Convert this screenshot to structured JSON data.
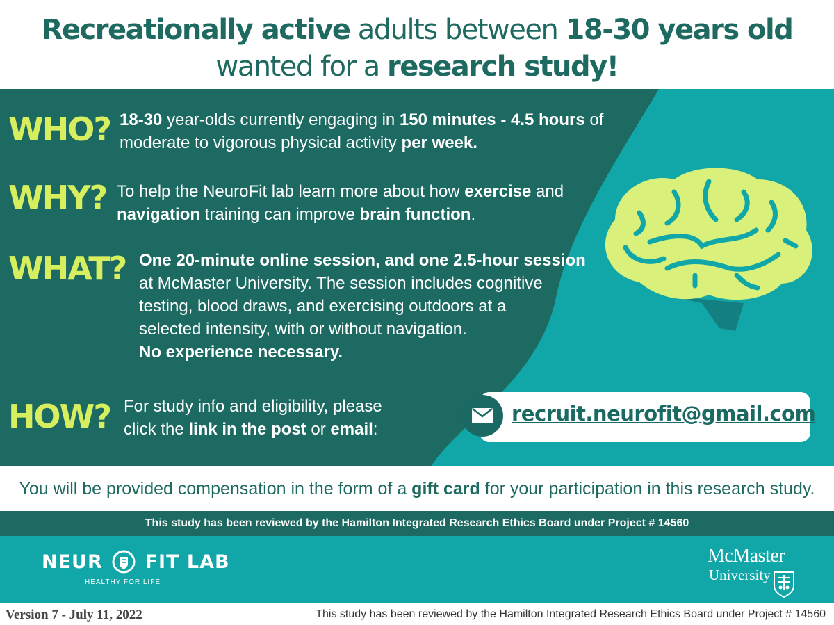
{
  "header": {
    "line1_a": "Recreationally active",
    "line1_b": " adults between ",
    "line1_c": "18-30 years old",
    "line2_a": "wanted for  a ",
    "line2_b": "research study!"
  },
  "who": {
    "label": "WHO?",
    "t1": "18-30",
    "t2": " year-olds currently engaging in ",
    "t3": "150 minutes - 4.5 hours",
    "t4": " of",
    "t5": "moderate to vigorous physical activity ",
    "t6": "per week."
  },
  "why": {
    "label": "WHY?",
    "t1": "To help the NeuroFit lab learn more about how ",
    "t2": "exercise",
    "t3": " and",
    "t4": "navigation",
    "t5": " training can improve ",
    "t6": "brain function",
    "t7": "."
  },
  "what": {
    "label": "WHAT?",
    "l1": "One 20-minute online session, and one 2.5-hour session",
    "l2": "at McMaster University. The session includes cognitive",
    "l3": "testing, blood draws, and exercising outdoors at a",
    "l4": "selected intensity, with or without navigation.",
    "l5": "No experience necessary."
  },
  "how": {
    "label": "HOW?",
    "l1": "For study info and eligibility, please",
    "t1": "click the ",
    "t2": "link in the post",
    "t3": " or ",
    "t4": "email",
    "t5": ":"
  },
  "email": {
    "part1": "recruit.neurofit",
    "part2": "@gmail.com",
    "icon": "envelope-icon"
  },
  "compensation": {
    "t1": "You will be provided compensation in the form of a ",
    "t2": "gift card",
    "t3": " for your participation in this research study."
  },
  "ethics_bar": "This study has been reviewed by the Hamilton Integrated Research Ethics Board under Project # 14560",
  "logos": {
    "neurofit_left": "NEUR",
    "neurofit_right": "FIT LAB",
    "neurofit_tagline": "HEALTHY FOR LIFE",
    "mcmaster_line1": "McMaster",
    "mcmaster_line2": "University"
  },
  "footer": {
    "version": "Version 7 - July 11, 2022",
    "ethics": "This study has been reviewed by the Hamilton Integrated Research Ethics Board under Project # 14560"
  },
  "colors": {
    "dark_teal": "#1d6a62",
    "teal": "#11a6a8",
    "lime": "#d7ef5e",
    "brain": "#d9f07a"
  }
}
